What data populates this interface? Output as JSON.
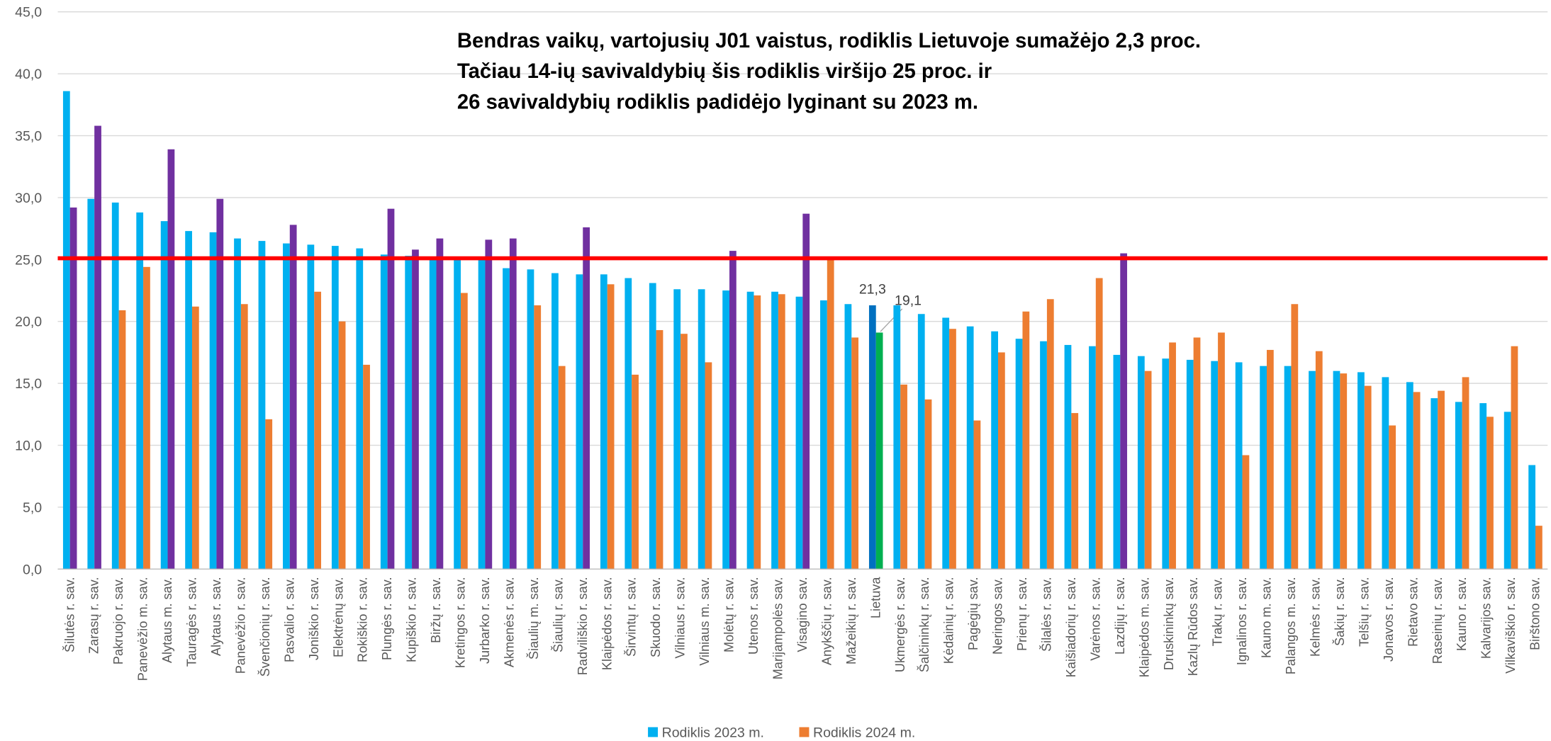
{
  "chart_data": {
    "type": "bar",
    "title": [
      "Bendras vaikų, vartojusių J01 vaistus, rodiklis Lietuvoje sumažėjo 2,3 proc.",
      "Tačiau 14-ių savivaldybių šis rodiklis viršijo 25 proc. ir",
      "26 savivaldybių rodiklis padidėjo lyginant su 2023 m."
    ],
    "categories": [
      "Šilutės r. sav.",
      "Zarasų r. sav.",
      "Pakruojo r. sav.",
      "Panevėžio m. sav.",
      "Alytaus m. sav.",
      "Tauragės r. sav.",
      "Alytaus r. sav.",
      "Panevėžio r. sav.",
      "Švenčionių r. sav.",
      "Pasvalio r. sav.",
      "Joniškio r. sav.",
      "Elektrėnų sav.",
      "Rokiškio r. sav.",
      "Plungės r. sav.",
      "Kupiškio r. sav.",
      "Biržų r. sav.",
      "Kretingos r. sav.",
      "Jurbarko r. sav.",
      "Akmenės r. sav.",
      "Šiaulių m. sav.",
      "Šiaulių r. sav.",
      "Radviliškio r. sav.",
      "Klaipėdos r. sav.",
      "Širvintų r. sav.",
      "Skuodo r. sav.",
      "Vilniaus r. sav.",
      "Vilniaus m. sav.",
      "Molėtų r. sav.",
      "Utenos r. sav.",
      "Marijampolės sav.",
      "Visagino sav.",
      "Anykščių r. sav.",
      "Mažeikių r. sav.",
      "Lietuva",
      "Ukmergės r. sav.",
      "Šalčininkų r. sav.",
      "Kėdainių r. sav.",
      "Pagėgių sav.",
      "Neringos sav.",
      "Prienų r. sav.",
      "Šilalės r. sav.",
      "Kaišiadorių r. sav.",
      "Varėnos r. sav.",
      "Lazdijų r. sav.",
      "Klaipėdos m. sav.",
      "Druskininkų sav.",
      "Kazlų Rūdos sav.",
      "Trakų r. sav.",
      "Ignalinos r. sav.",
      "Kauno m. sav.",
      "Palangos m. sav.",
      "Kelmės r. sav.",
      "Šakių r. sav.",
      "Telšių r. sav.",
      "Jonavos r. sav.",
      "Rietavo sav.",
      "Raseinių r. sav.",
      "Kauno r. sav.",
      "Kalvarijos sav.",
      "Vilkaviškio r. sav.",
      "Birštono sav."
    ],
    "series": [
      {
        "name": "Rodiklis 2023 m.",
        "color": "#00b0f0",
        "values": [
          38.6,
          29.9,
          29.6,
          28.8,
          28.1,
          27.3,
          27.2,
          26.7,
          26.5,
          26.3,
          26.2,
          26.1,
          25.9,
          25.4,
          25.3,
          25.2,
          25.1,
          25.0,
          24.3,
          24.2,
          23.9,
          23.8,
          23.8,
          23.5,
          23.1,
          22.6,
          22.6,
          22.5,
          22.4,
          22.4,
          22.0,
          21.7,
          21.4,
          21.3,
          21.3,
          20.6,
          20.3,
          19.6,
          19.2,
          18.6,
          18.4,
          18.1,
          18.0,
          17.3,
          17.2,
          17.0,
          16.9,
          16.8,
          16.7,
          16.4,
          16.4,
          16.0,
          16.0,
          15.9,
          15.5,
          15.1,
          13.8,
          13.5,
          13.4,
          12.7,
          8.4
        ],
        "value_labels": [
          null,
          null,
          null,
          null,
          null,
          null,
          null,
          null,
          null,
          null,
          null,
          null,
          null,
          null,
          null,
          null,
          null,
          null,
          null,
          null,
          null,
          null,
          null,
          null,
          null,
          null,
          null,
          null,
          null,
          null,
          null,
          null,
          null,
          "21,3",
          null,
          null,
          null,
          null,
          null,
          null,
          null,
          null,
          null,
          null,
          null,
          null,
          null,
          null,
          null,
          null,
          null,
          null,
          null,
          null,
          null,
          null,
          null,
          null,
          null,
          null,
          null
        ],
        "colors": [
          "#00b0f0",
          "#00b0f0",
          "#00b0f0",
          "#00b0f0",
          "#00b0f0",
          "#00b0f0",
          "#00b0f0",
          "#00b0f0",
          "#00b0f0",
          "#00b0f0",
          "#00b0f0",
          "#00b0f0",
          "#00b0f0",
          "#00b0f0",
          "#00b0f0",
          "#00b0f0",
          "#00b0f0",
          "#00b0f0",
          "#00b0f0",
          "#00b0f0",
          "#00b0f0",
          "#00b0f0",
          "#00b0f0",
          "#00b0f0",
          "#00b0f0",
          "#00b0f0",
          "#00b0f0",
          "#00b0f0",
          "#00b0f0",
          "#00b0f0",
          "#00b0f0",
          "#00b0f0",
          "#00b0f0",
          "#0070c0",
          "#00b0f0",
          "#00b0f0",
          "#00b0f0",
          "#00b0f0",
          "#00b0f0",
          "#00b0f0",
          "#00b0f0",
          "#00b0f0",
          "#00b0f0",
          "#00b0f0",
          "#00b0f0",
          "#00b0f0",
          "#00b0f0",
          "#00b0f0",
          "#00b0f0",
          "#00b0f0",
          "#00b0f0",
          "#00b0f0",
          "#00b0f0",
          "#00b0f0",
          "#00b0f0",
          "#00b0f0",
          "#00b0f0",
          "#00b0f0",
          "#00b0f0",
          "#00b0f0",
          "#00b0f0"
        ]
      },
      {
        "name": "Rodiklis 2024 m.",
        "color": "#ed7d31",
        "values": [
          29.2,
          35.8,
          20.9,
          24.4,
          33.9,
          21.2,
          29.9,
          21.4,
          12.1,
          27.8,
          22.4,
          20.0,
          16.5,
          29.1,
          25.8,
          26.7,
          22.3,
          26.6,
          26.7,
          21.3,
          16.4,
          27.6,
          23.0,
          15.7,
          19.3,
          19.0,
          16.7,
          25.7,
          22.1,
          22.2,
          28.7,
          25.0,
          18.7,
          19.1,
          14.9,
          13.7,
          19.4,
          12.0,
          17.5,
          20.8,
          21.8,
          12.6,
          23.5,
          25.5,
          16.0,
          18.3,
          18.7,
          19.1,
          9.2,
          17.7,
          21.4,
          17.6,
          15.8,
          14.8,
          11.6,
          14.3,
          14.4,
          15.5,
          12.3,
          18.0,
          3.5
        ],
        "value_labels": [
          null,
          null,
          null,
          null,
          null,
          null,
          null,
          null,
          null,
          null,
          null,
          null,
          null,
          null,
          null,
          null,
          null,
          null,
          null,
          null,
          null,
          null,
          null,
          null,
          null,
          null,
          null,
          null,
          null,
          null,
          null,
          null,
          null,
          "19,1",
          null,
          null,
          null,
          null,
          null,
          null,
          null,
          null,
          null,
          null,
          null,
          null,
          null,
          null,
          null,
          null,
          null,
          null,
          null,
          null,
          null,
          null,
          null,
          null,
          null,
          null,
          null
        ],
        "colors": [
          "#7030a0",
          "#7030a0",
          "#ed7d31",
          "#ed7d31",
          "#7030a0",
          "#ed7d31",
          "#7030a0",
          "#ed7d31",
          "#ed7d31",
          "#7030a0",
          "#ed7d31",
          "#ed7d31",
          "#ed7d31",
          "#7030a0",
          "#7030a0",
          "#7030a0",
          "#ed7d31",
          "#7030a0",
          "#7030a0",
          "#ed7d31",
          "#ed7d31",
          "#7030a0",
          "#ed7d31",
          "#ed7d31",
          "#ed7d31",
          "#ed7d31",
          "#ed7d31",
          "#7030a0",
          "#ed7d31",
          "#ed7d31",
          "#7030a0",
          "#ed7d31",
          "#ed7d31",
          "#00b050",
          "#ed7d31",
          "#ed7d31",
          "#ed7d31",
          "#ed7d31",
          "#ed7d31",
          "#ed7d31",
          "#ed7d31",
          "#ed7d31",
          "#ed7d31",
          "#7030a0",
          "#ed7d31",
          "#ed7d31",
          "#ed7d31",
          "#ed7d31",
          "#ed7d31",
          "#ed7d31",
          "#ed7d31",
          "#ed7d31",
          "#ed7d31",
          "#ed7d31",
          "#ed7d31",
          "#ed7d31",
          "#ed7d31",
          "#ed7d31",
          "#ed7d31",
          "#ed7d31",
          "#ed7d31"
        ]
      }
    ],
    "ylim": [
      0,
      45
    ],
    "yticks": [
      {
        "value": 0,
        "label": "0,0"
      },
      {
        "value": 5,
        "label": "5,0"
      },
      {
        "value": 10,
        "label": "10,0"
      },
      {
        "value": 15,
        "label": "15,0"
      },
      {
        "value": 20,
        "label": "20,0"
      },
      {
        "value": 25,
        "label": "25,0"
      },
      {
        "value": 30,
        "label": "30,0"
      },
      {
        "value": 35,
        "label": "35,0"
      },
      {
        "value": 40,
        "label": "40,0"
      },
      {
        "value": 45,
        "label": "45,0"
      }
    ],
    "grid": true,
    "reference_line": {
      "value": 25.1,
      "color": "#ff0000"
    },
    "legend": "bottom"
  }
}
